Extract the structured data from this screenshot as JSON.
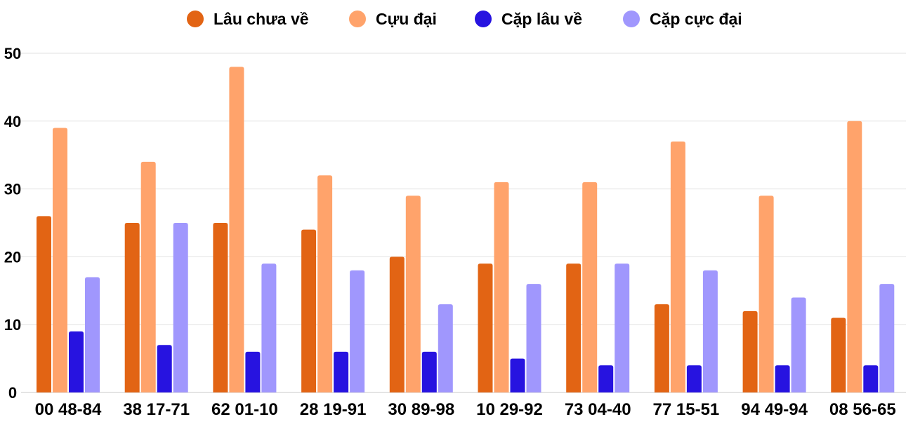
{
  "chart_data": {
    "type": "bar",
    "title": "",
    "xlabel": "",
    "ylabel": "",
    "ylim": [
      0,
      50
    ],
    "yticks": [
      0,
      10,
      20,
      30,
      40,
      50
    ],
    "grid": true,
    "legend_position": "top",
    "categories": [
      "00 48-84",
      "38 17-71",
      "62 01-10",
      "28 19-91",
      "30 89-98",
      "10 29-92",
      "73 04-40",
      "77 15-51",
      "94 49-94",
      "08 56-65"
    ],
    "series": [
      {
        "name": "Lâu chưa về",
        "color": "#e26414",
        "values": [
          26,
          25,
          25,
          24,
          20,
          19,
          19,
          13,
          12,
          11
        ]
      },
      {
        "name": "Cựu đại",
        "color": "#ffa36b",
        "values": [
          39,
          34,
          48,
          32,
          29,
          31,
          31,
          37,
          29,
          40
        ]
      },
      {
        "name": "Cặp lâu về",
        "color": "#2713e0",
        "values": [
          9,
          7,
          6,
          6,
          6,
          5,
          4,
          4,
          4,
          4
        ]
      },
      {
        "name": "Cặp cực đại",
        "color": "#a097fd",
        "values": [
          17,
          25,
          19,
          18,
          13,
          16,
          19,
          18,
          14,
          16
        ]
      }
    ]
  }
}
